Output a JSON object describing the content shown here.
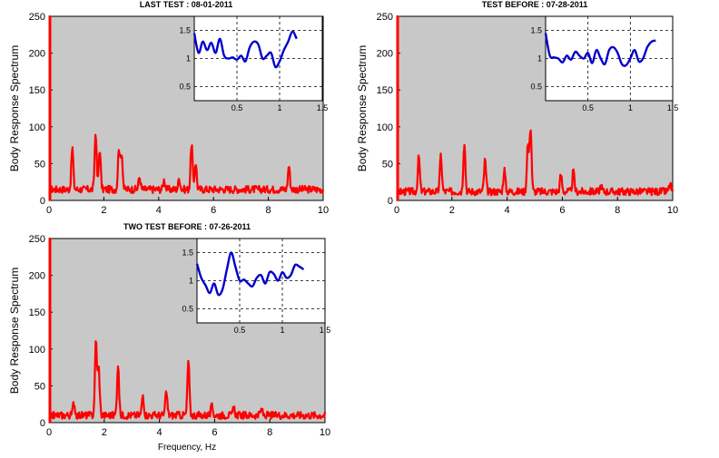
{
  "figure": {
    "xlabel": "Frequency, Hz"
  },
  "chart_data": [
    {
      "type": "line",
      "title": "LAST TEST : 08-01-2011",
      "ylabel": "Body Response Spectrum",
      "xlim": [
        0,
        10
      ],
      "ylim": [
        0,
        250
      ],
      "xticks": [
        "0",
        "2",
        "4",
        "6",
        "8",
        "10"
      ],
      "yticks": [
        "0",
        "50",
        "100",
        "150",
        "200",
        "250"
      ],
      "background": "#c8c8c8",
      "series_color": "#ff0000",
      "baseline": 15,
      "peaks": [
        {
          "x": 0.85,
          "y": 72
        },
        {
          "x": 1.7,
          "y": 93
        },
        {
          "x": 1.85,
          "y": 70
        },
        {
          "x": 2.55,
          "y": 72
        },
        {
          "x": 2.65,
          "y": 65
        },
        {
          "x": 3.3,
          "y": 32
        },
        {
          "x": 4.2,
          "y": 28
        },
        {
          "x": 4.75,
          "y": 30
        },
        {
          "x": 5.2,
          "y": 78
        },
        {
          "x": 5.35,
          "y": 52
        },
        {
          "x": 8.75,
          "y": 48
        }
      ],
      "inset": {
        "xlim": [
          0,
          1.5
        ],
        "ylim": [
          0.25,
          1.75
        ],
        "xticks": [
          "0.5",
          "1",
          "1.5"
        ],
        "yticks": [
          "0.5",
          "1",
          "1.5"
        ],
        "series_color": "#0000cc",
        "x": [
          0.0,
          0.05,
          0.1,
          0.15,
          0.2,
          0.25,
          0.3,
          0.35,
          0.4,
          0.45,
          0.5,
          0.55,
          0.6,
          0.65,
          0.7,
          0.75,
          0.8,
          0.85,
          0.9,
          0.95,
          1.0,
          1.05,
          1.1,
          1.15,
          1.2
        ],
        "y": [
          1.45,
          1.1,
          1.3,
          1.15,
          1.28,
          1.1,
          1.35,
          1.05,
          1.0,
          1.02,
          0.98,
          1.05,
          0.95,
          1.2,
          1.3,
          1.25,
          1.0,
          1.05,
          1.1,
          0.85,
          0.95,
          1.15,
          1.3,
          1.48,
          1.35
        ]
      }
    },
    {
      "type": "line",
      "title": "TEST BEFORE : 07-28-2011",
      "ylabel": "Body Response Spectrum",
      "xlim": [
        0,
        10
      ],
      "ylim": [
        0,
        250
      ],
      "xticks": [
        "0",
        "2",
        "4",
        "6",
        "8",
        "10"
      ],
      "yticks": [
        "0",
        "50",
        "100",
        "150",
        "200",
        "250"
      ],
      "background": "#c8c8c8",
      "series_color": "#ff0000",
      "baseline": 12,
      "peaks": [
        {
          "x": 0.8,
          "y": 60
        },
        {
          "x": 1.6,
          "y": 62
        },
        {
          "x": 2.45,
          "y": 80
        },
        {
          "x": 3.2,
          "y": 55
        },
        {
          "x": 3.9,
          "y": 42
        },
        {
          "x": 4.75,
          "y": 75
        },
        {
          "x": 4.85,
          "y": 100
        },
        {
          "x": 5.95,
          "y": 35
        },
        {
          "x": 6.4,
          "y": 40
        },
        {
          "x": 7.4,
          "y": 20
        },
        {
          "x": 9.9,
          "y": 22
        }
      ],
      "inset": {
        "xlim": [
          0,
          1.5
        ],
        "ylim": [
          0.25,
          1.75
        ],
        "xticks": [
          "0.5",
          "1",
          "1.5"
        ],
        "yticks": [
          "0.5",
          "1",
          "1.5"
        ],
        "series_color": "#0000cc",
        "x": [
          0.0,
          0.05,
          0.1,
          0.15,
          0.2,
          0.25,
          0.3,
          0.35,
          0.4,
          0.45,
          0.5,
          0.55,
          0.6,
          0.65,
          0.7,
          0.75,
          0.8,
          0.85,
          0.9,
          0.95,
          1.0,
          1.05,
          1.1,
          1.15,
          1.2,
          1.25,
          1.3
        ],
        "y": [
          1.45,
          1.05,
          1.02,
          1.0,
          0.93,
          1.05,
          0.98,
          1.12,
          1.05,
          1.0,
          1.1,
          0.92,
          1.15,
          1.0,
          0.9,
          1.15,
          1.2,
          1.1,
          0.9,
          0.88,
          1.0,
          1.15,
          0.95,
          1.0,
          1.2,
          1.3,
          1.32
        ]
      }
    },
    {
      "type": "line",
      "title": "TWO TEST BEFORE : 07-26-2011",
      "ylabel": "Body Response Spectrum",
      "xlim": [
        0,
        10
      ],
      "ylim": [
        0,
        250
      ],
      "xticks": [
        "0",
        "2",
        "4",
        "6",
        "8",
        "10"
      ],
      "yticks": [
        "0",
        "50",
        "100",
        "150",
        "200",
        "250"
      ],
      "background": "#c8c8c8",
      "series_color": "#ff0000",
      "baseline": 10,
      "peaks": [
        {
          "x": 0.9,
          "y": 28
        },
        {
          "x": 1.7,
          "y": 112
        },
        {
          "x": 1.8,
          "y": 75
        },
        {
          "x": 2.5,
          "y": 80
        },
        {
          "x": 3.4,
          "y": 38
        },
        {
          "x": 4.25,
          "y": 42
        },
        {
          "x": 5.05,
          "y": 84
        },
        {
          "x": 5.9,
          "y": 22
        },
        {
          "x": 6.7,
          "y": 20
        },
        {
          "x": 7.7,
          "y": 18
        }
      ],
      "inset": {
        "xlim": [
          0,
          1.5
        ],
        "ylim": [
          0.25,
          1.75
        ],
        "xticks": [
          "0.5",
          "1",
          "1.5"
        ],
        "yticks": [
          "0.5",
          "1",
          "1.5"
        ],
        "series_color": "#0000cc",
        "x": [
          0.0,
          0.05,
          0.1,
          0.15,
          0.2,
          0.25,
          0.3,
          0.35,
          0.4,
          0.45,
          0.5,
          0.55,
          0.6,
          0.65,
          0.7,
          0.75,
          0.8,
          0.85,
          0.9,
          0.95,
          1.0,
          1.05,
          1.1,
          1.15,
          1.2,
          1.25
        ],
        "y": [
          1.3,
          1.05,
          0.92,
          0.78,
          0.95,
          0.75,
          0.85,
          1.2,
          1.5,
          1.25,
          1.0,
          1.02,
          0.95,
          0.9,
          1.05,
          1.1,
          0.95,
          1.15,
          1.12,
          1.0,
          1.15,
          1.05,
          1.1,
          1.28,
          1.25,
          1.2
        ]
      }
    }
  ]
}
